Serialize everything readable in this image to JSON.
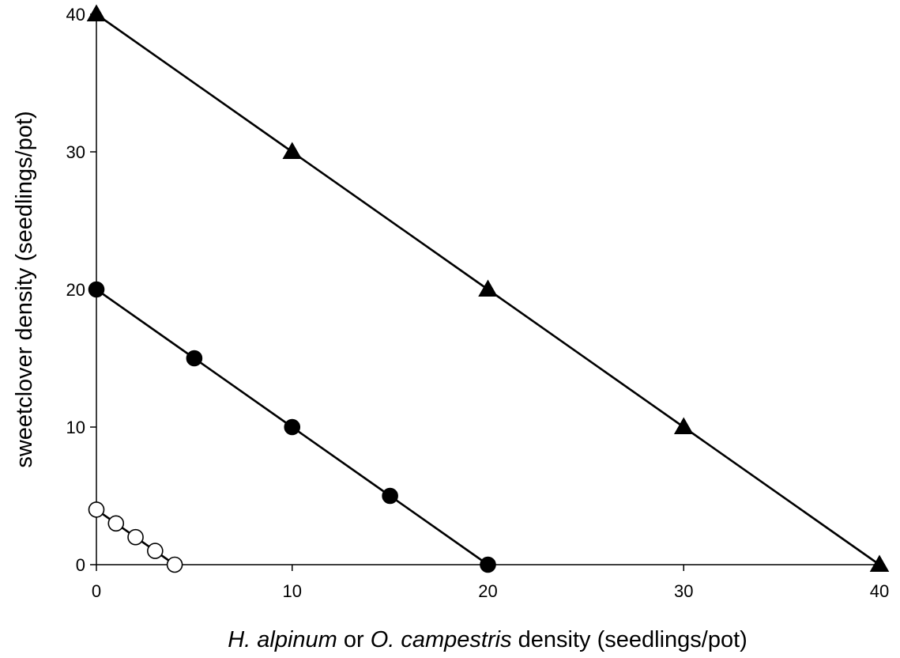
{
  "chart_data": {
    "type": "scatter",
    "xlabel": {
      "parts": [
        {
          "text": "H. alpinum",
          "italic": true
        },
        {
          "text": " or ",
          "italic": false
        },
        {
          "text": "O. campestris",
          "italic": true
        },
        {
          "text": " density (seedlings/pot)",
          "italic": false
        }
      ]
    },
    "ylabel": "sweetclover density (seedlings/pot)",
    "xlim": [
      0,
      40
    ],
    "ylim": [
      0,
      40
    ],
    "xticks": [
      0,
      10,
      20,
      30,
      40
    ],
    "yticks": [
      0,
      10,
      20,
      30,
      40
    ],
    "grid": false,
    "series": [
      {
        "marker": "triangle",
        "fill": "#000000",
        "x": [
          0,
          10,
          20,
          30,
          40
        ],
        "y": [
          40,
          30,
          20,
          10,
          0
        ]
      },
      {
        "marker": "circle",
        "fill": "#000000",
        "x": [
          0,
          5,
          10,
          15,
          20
        ],
        "y": [
          20,
          15,
          10,
          5,
          0
        ]
      },
      {
        "marker": "circle",
        "fill": "#ffffff",
        "x": [
          0,
          1,
          2,
          3,
          4
        ],
        "y": [
          4,
          3,
          2,
          1,
          0
        ]
      }
    ]
  }
}
